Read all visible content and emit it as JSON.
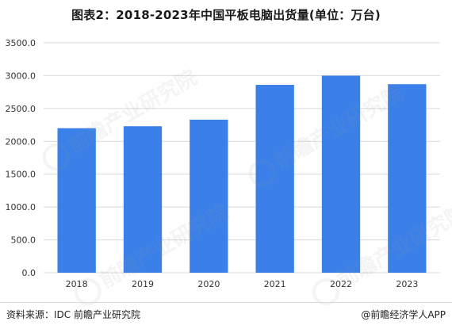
{
  "title": "图表2：2018-2023年中国平板电脑出货量(单位：万台)",
  "footer": {
    "source": "资料来源：IDC 前瞻产业研究院",
    "brand": "@前瞻经济学人APP"
  },
  "colors": {
    "bar": "#3b80e8",
    "grid": "#d9d9d9",
    "axis_text": "#333333",
    "watermark": "#969696"
  },
  "watermark": {
    "text": "前瞻产业研究院",
    "icon": "qianzhan-logo-icon"
  },
  "chart_data": {
    "type": "bar",
    "title": "图表2：2018-2023年中国平板电脑出货量(单位：万台)",
    "categories": [
      "2018",
      "2019",
      "2020",
      "2021",
      "2022",
      "2023"
    ],
    "values": [
      2200,
      2230,
      2330,
      2860,
      3000,
      2870
    ],
    "xlabel": "",
    "ylabel": "",
    "ylim": [
      0,
      3500
    ],
    "yticks": [
      "0.0",
      "500.0",
      "1000.0",
      "1500.0",
      "2000.0",
      "2500.0",
      "3000.0",
      "3500.0"
    ],
    "ytick_values": [
      0,
      500,
      1000,
      1500,
      2000,
      2500,
      3000,
      3500
    ],
    "grid": true,
    "legend": "none"
  }
}
